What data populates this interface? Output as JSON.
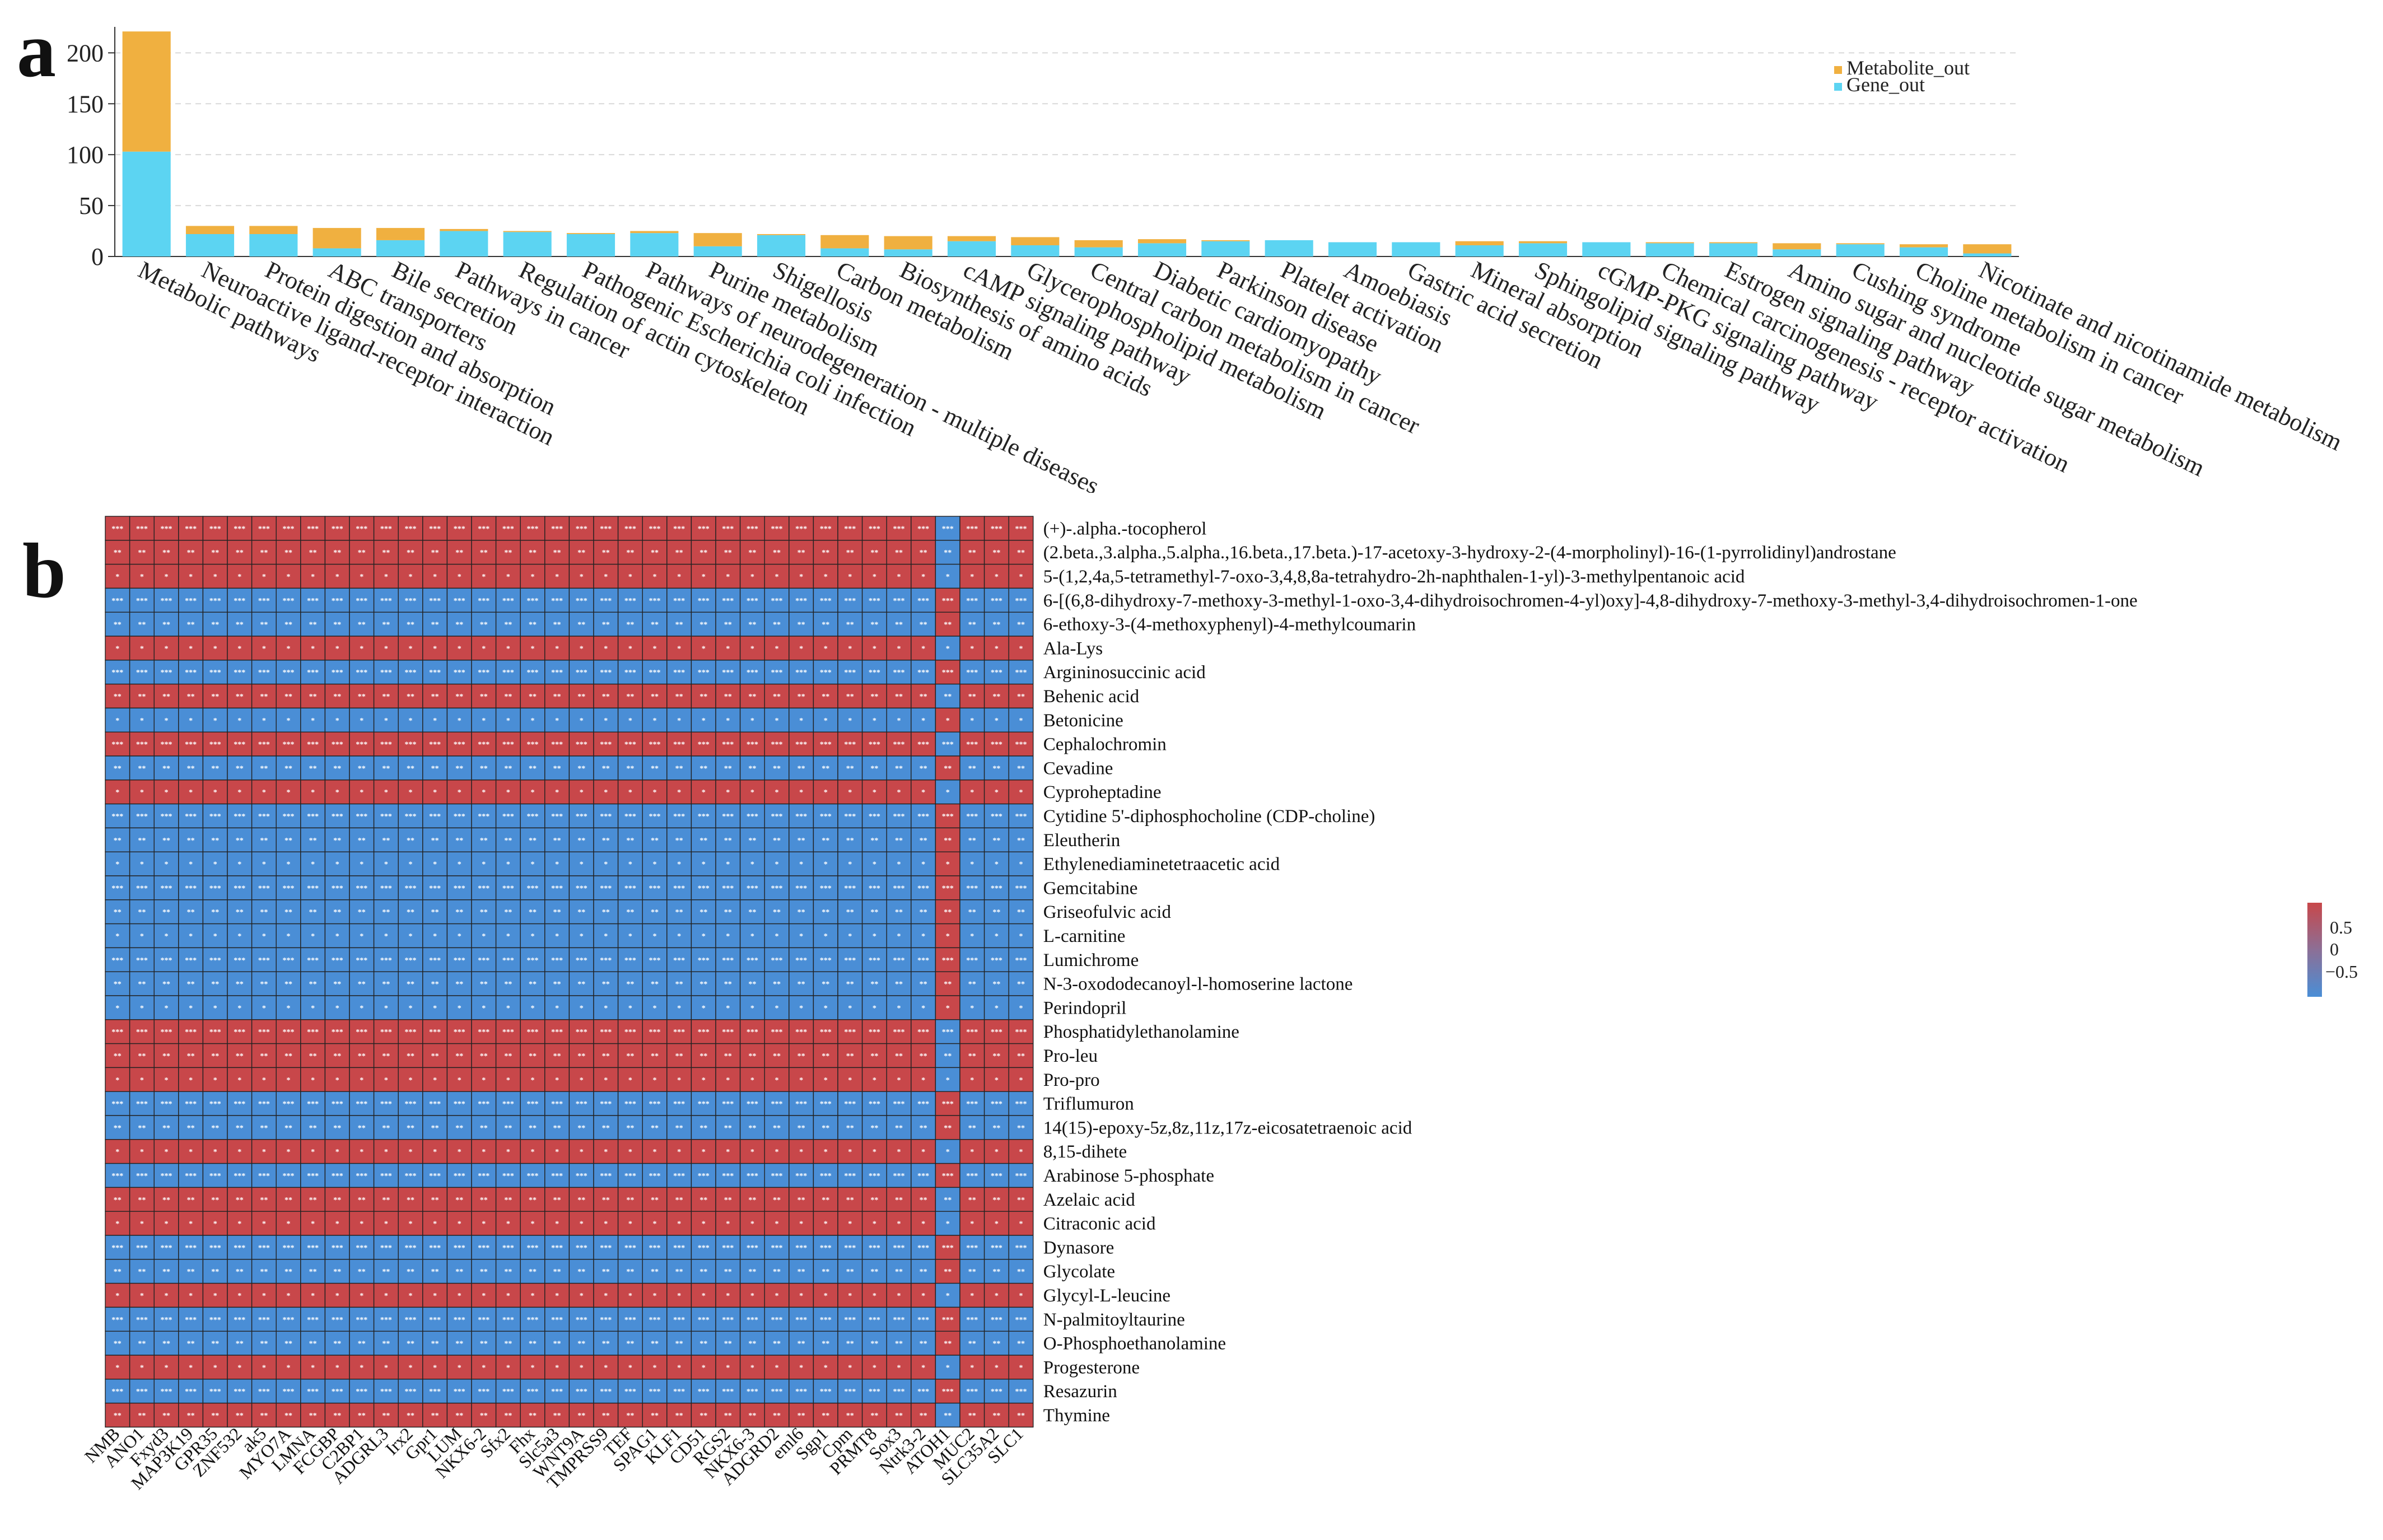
{
  "panels": {
    "a": "a",
    "b": "b"
  },
  "colors": {
    "metabolite": "#F0B040",
    "gene": "#5CD4F2",
    "high": "#C8474A",
    "low": "#4A8ED6"
  },
  "chart_data": [
    {
      "type": "bar",
      "stacked": true,
      "ylim": [
        0,
        220
      ],
      "yticks": [
        0,
        50,
        100,
        150,
        200
      ],
      "grid": true,
      "legend_position": "top-right",
      "categories": [
        "Metabolic pathways",
        "Neuroactive ligand-receptor interaction",
        "Protein digestion and absorption",
        "ABC transporters",
        "Bile secretion",
        "Pathways in cancer",
        "Regulation of actin cytoskeleton",
        "Pathogenic Escherichia coli infection",
        "Pathways of neurodegeneration - multiple diseases",
        "Purine metabolism",
        "Shigellosis",
        "Carbon metabolism",
        "Biosynthesis of amino acids",
        "cAMP signaling pathway",
        "Glycerophospholipid metabolism",
        "Central carbon metabolism in cancer",
        "Diabetic cardiomyopathy",
        "Parkinson disease",
        "Platelet activation",
        "Amoebiasis",
        "Gastric acid secretion",
        "Mineral absorption",
        "Sphingolipid signaling pathway",
        "cGMP-PKG signaling pathway",
        "Chemical carcinogenesis - receptor activation",
        "Estrogen signaling pathway",
        "Amino sugar and nucleotide sugar metabolism",
        "Cushing syndrome",
        "Choline metabolism in cancer",
        "Nicotinate and nicotinamide metabolism"
      ],
      "series": [
        {
          "name": "Gene_out",
          "values": [
            103,
            22,
            22,
            8,
            16,
            25,
            24,
            22,
            23,
            10,
            21,
            8,
            7,
            15,
            11,
            9,
            13,
            15,
            16,
            14,
            14,
            11,
            13,
            14,
            13,
            13,
            7,
            12,
            9,
            3
          ]
        },
        {
          "name": "Metabolite_out",
          "values": [
            118,
            8,
            8,
            20,
            12,
            2,
            1,
            1,
            2,
            13,
            1,
            13,
            13,
            5,
            8,
            7,
            4,
            1,
            0,
            0,
            0,
            4,
            2,
            0,
            1,
            1,
            6,
            1,
            3,
            9
          ]
        }
      ]
    },
    {
      "type": "heatmap",
      "colorbar": {
        "ticks": [
          0.5,
          0,
          -0.5
        ],
        "tick_labels": [
          "0.5",
          "0",
          "−0.5"
        ]
      },
      "columns": [
        "NMB",
        "ANO1",
        "Fxyd3",
        "MAP3K19",
        "GPR35",
        "ZNF532",
        "ak5",
        "MYO7A",
        "LMNA",
        "FCGBP",
        "C2BP1",
        "ADGRL3",
        "Irx2",
        "Gpr1",
        "LUM",
        "NKX6-2",
        "Sfx2",
        "Fhx",
        "Slc5a3",
        "WNT9A",
        "TMPRSS9",
        "TEF",
        "SPAG1",
        "KLF1",
        "CD51",
        "RGS2",
        "NKX6-3",
        "ADGRD2",
        "eml6",
        "Sgp1",
        "Cpm",
        "PRMT8",
        "Sox3",
        "Ntrk3-2",
        "ATOH1",
        "MUC2",
        "SLC35A2",
        "SLC1"
      ],
      "rows": [
        "(+)-.alpha.-tocopherol",
        "(2.beta.,3.alpha.,5.alpha.,16.beta.,17.beta.)-17-acetoxy-3-hydroxy-2-(4-morpholinyl)-16-(1-pyrrolidinyl)androstane",
        "5-(1,2,4a,5-tetramethyl-7-oxo-3,4,8,8a-tetrahydro-2h-naphthalen-1-yl)-3-methylpentanoic acid",
        "6-[(6,8-dihydroxy-7-methoxy-3-methyl-1-oxo-3,4-dihydroisochromen-4-yl)oxy]-4,8-dihydroxy-7-methoxy-3-methyl-3,4-dihydroisochromen-1-one",
        "6-ethoxy-3-(4-methoxyphenyl)-4-methylcoumarin",
        "Ala-Lys",
        "Argininosuccinic acid",
        "Behenic acid",
        "Betonicine",
        "Cephalochromin",
        "Cevadine",
        "Cyproheptadine",
        "Cytidine 5'-diphosphocholine (CDP-choline)",
        "Eleutherin",
        "Ethylenediaminetetraacetic acid",
        "Gemcitabine",
        "Griseofulvic acid",
        "L-carnitine",
        "Lumichrome",
        "N-3-oxododecanoyl-l-homoserine lactone",
        "Perindopril",
        "Phosphatidylethanolamine",
        "Pro-leu",
        "Pro-pro",
        "Triflumuron",
        "14(15)-epoxy-5z,8z,11z,17z-eicosatetraenoic acid",
        "8,15-dihete",
        "Arabinose 5-phosphate",
        "Azelaic acid",
        "Citraconic acid",
        "Dynasore",
        "Glycolate",
        "Glycyl-L-leucine",
        "N-palmitoyltaurine",
        "O-Phosphoethanolamine",
        "Progesterone",
        "Resazurin",
        "Thymine"
      ],
      "row_sign": [
        1,
        1,
        1,
        -1,
        -1,
        1,
        -1,
        1,
        -1,
        1,
        -1,
        1,
        -1,
        -1,
        -1,
        -1,
        -1,
        -1,
        -1,
        -1,
        -1,
        1,
        1,
        1,
        -1,
        -1,
        1,
        -1,
        1,
        1,
        -1,
        -1,
        1,
        -1,
        -1,
        1,
        -1,
        1
      ],
      "significance_marks": [
        "***",
        "**",
        "*"
      ]
    }
  ]
}
